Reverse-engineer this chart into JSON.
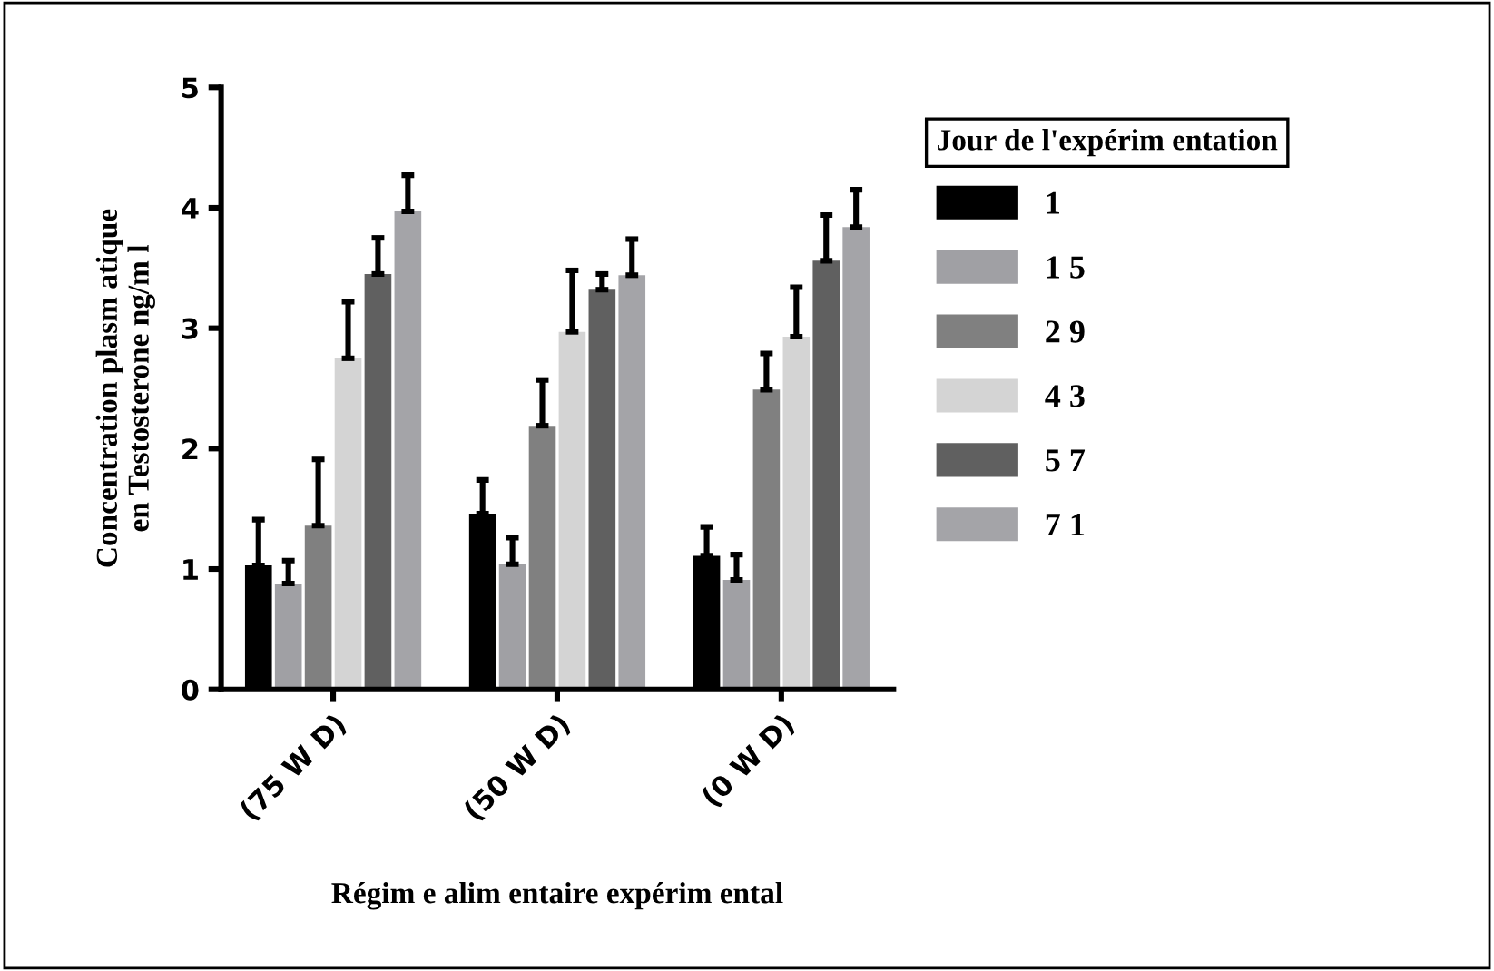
{
  "chart_data": {
    "type": "bar",
    "xlabel": "Régim e alim entaire expérim ental",
    "ylabel": "Concentration plasm atique\nen Testosterone ng/m l",
    "legend_title": "Jour de l'expérim entation",
    "legend": "right",
    "grid": false,
    "categories": [
      "(75 W D)",
      "(50 W D)",
      "(0 W D)"
    ],
    "ylim": [
      0,
      5
    ],
    "yticks": [
      0,
      1,
      2,
      3,
      4,
      5
    ],
    "series": [
      {
        "name": "1",
        "color": "#000000",
        "values": [
          1.03,
          1.46,
          1.11
        ],
        "errors": [
          [
            1.03,
            1.41
          ],
          [
            1.46,
            1.74
          ],
          [
            1.11,
            1.35
          ]
        ]
      },
      {
        "name": "1 5",
        "color": "#a0a0a4",
        "values": [
          0.88,
          1.04,
          0.91
        ],
        "errors": [
          [
            0.88,
            1.07
          ],
          [
            1.04,
            1.26
          ],
          [
            0.91,
            1.12
          ]
        ]
      },
      {
        "name": "2 9",
        "color": "#808080",
        "values": [
          1.36,
          2.19,
          2.49
        ],
        "errors": [
          [
            1.36,
            1.91
          ],
          [
            2.19,
            2.57
          ],
          [
            2.49,
            2.79
          ]
        ]
      },
      {
        "name": "4 3",
        "color": "#d4d4d4",
        "values": [
          2.75,
          2.97,
          2.93
        ],
        "errors": [
          [
            2.75,
            3.22
          ],
          [
            2.97,
            3.48
          ],
          [
            2.93,
            3.34
          ]
        ]
      },
      {
        "name": "5 7",
        "color": "#606060",
        "values": [
          3.45,
          3.32,
          3.56
        ],
        "errors": [
          [
            3.45,
            3.75
          ],
          [
            3.32,
            3.45
          ],
          [
            3.56,
            3.94
          ]
        ]
      },
      {
        "name": "7 1",
        "color": "#a4a4a8",
        "values": [
          3.97,
          3.44,
          3.84
        ],
        "errors": [
          [
            3.97,
            4.27
          ],
          [
            3.44,
            3.74
          ],
          [
            3.84,
            4.15
          ]
        ]
      }
    ]
  }
}
